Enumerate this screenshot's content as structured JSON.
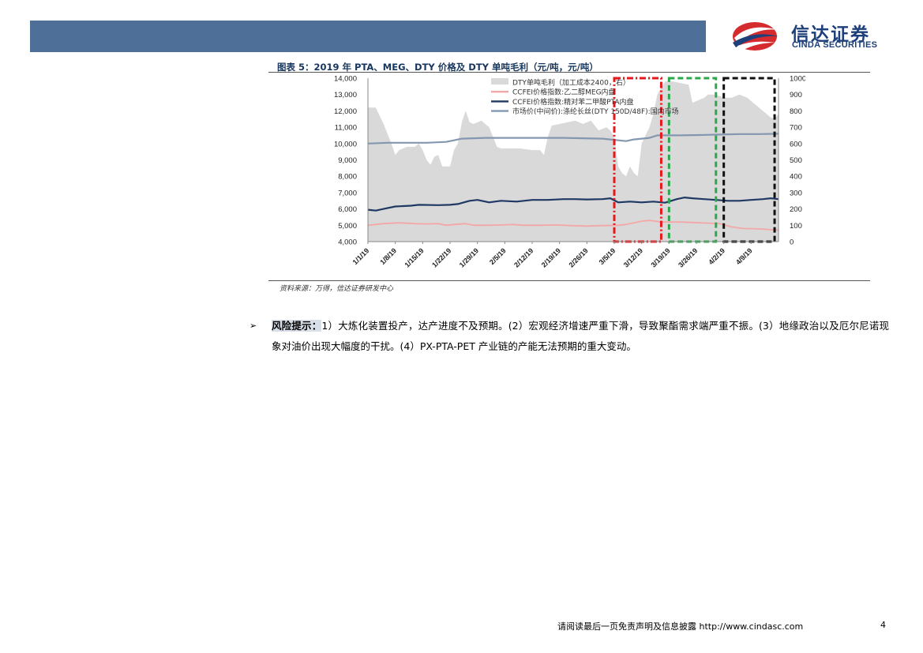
{
  "logo": {
    "cn": "信达证券",
    "en": "CINDA SECURITIES"
  },
  "figure_title": "图表 5：2019 年 PTA、MEG、DTY 价格及 DTY 单吨毛利（元/吨，元/吨）",
  "source": "资料来源：万得，信达证券研发中心",
  "risk": {
    "bullet": "➢",
    "label": "风险提示：",
    "text": "1）大炼化装置投产，达产进度不及预期。(2）宏观经济增速严重下滑，导致聚酯需求端严重不振。(3）地缘政治以及厄尔尼诺现象对油价出现大幅度的干扰。(4）PX-PTA-PET 产业链的产能无法预期的重大变动。"
  },
  "footer": {
    "text": "请阅读最后一页免责声明及信息披露 http://www.cindasc.com",
    "page": "4"
  },
  "colors": {
    "header": "#4e6f97",
    "area": "#d9d9d9",
    "meg": "#f4a7a7",
    "pta": "#1f3864",
    "dty": "#8497b0",
    "box_red": "#e8171c",
    "box_green": "#2aa84a",
    "box_black": "#111111"
  },
  "chart_data": {
    "type": "line",
    "x_range": [
      "1/1/19",
      "4/15/19"
    ],
    "x_tick_labels": [
      "1/1/19",
      "1/8/19",
      "1/15/19",
      "1/22/19",
      "1/29/19",
      "2/5/19",
      "2/12/19",
      "2/19/19",
      "2/26/19",
      "3/5/19",
      "3/12/19",
      "3/19/19",
      "3/26/19",
      "4/2/19",
      "4/9/19"
    ],
    "y_left": {
      "range": [
        4000,
        14000
      ],
      "ticks": [
        "4,000",
        "5,000",
        "6,000",
        "7,000",
        "8,000",
        "9,000",
        "10,000",
        "11,000",
        "12,000",
        "13,000",
        "14,000"
      ]
    },
    "y_right": {
      "range": [
        0,
        1000
      ],
      "ticks": [
        "0",
        "100",
        "200",
        "300",
        "400",
        "500",
        "600",
        "700",
        "800",
        "900",
        "1000"
      ]
    },
    "legend": [
      "DTY单吨毛利（加工成本2400，右）",
      "CCFEI价格指数:乙二醇MEG内盘",
      "CCFEI价格指数:精对苯二甲酸PTA内盘",
      "市场价(中间价):涤纶长丝(DTY 150D/48F):国内市场"
    ],
    "series": [
      {
        "name": "DTY单吨毛利（加工成本2400，右）",
        "axis": "right",
        "kind": "area",
        "points": [
          [
            0,
            820
          ],
          [
            2,
            820
          ],
          [
            4,
            720
          ],
          [
            6,
            600
          ],
          [
            7,
            530
          ],
          [
            8,
            560
          ],
          [
            10,
            580
          ],
          [
            12,
            580
          ],
          [
            13,
            600
          ],
          [
            14,
            560
          ],
          [
            15,
            500
          ],
          [
            16,
            470
          ],
          [
            17,
            520
          ],
          [
            18,
            530
          ],
          [
            19,
            460
          ],
          [
            21,
            460
          ],
          [
            22,
            560
          ],
          [
            23,
            600
          ],
          [
            24,
            730
          ],
          [
            25,
            800
          ],
          [
            26,
            730
          ],
          [
            27,
            720
          ],
          [
            29,
            740
          ],
          [
            30,
            720
          ],
          [
            31,
            700
          ],
          [
            32,
            640
          ],
          [
            33,
            580
          ],
          [
            34,
            570
          ],
          [
            35,
            570
          ],
          [
            39,
            570
          ],
          [
            42,
            560
          ],
          [
            44,
            560
          ],
          [
            45,
            530
          ],
          [
            46,
            640
          ],
          [
            47,
            710
          ],
          [
            49,
            720
          ],
          [
            51,
            730
          ],
          [
            53,
            740
          ],
          [
            55,
            720
          ],
          [
            57,
            740
          ],
          [
            59,
            680
          ],
          [
            61,
            700
          ],
          [
            62,
            680
          ],
          [
            63,
            640
          ],
          [
            64,
            460
          ],
          [
            65,
            420
          ],
          [
            66,
            400
          ],
          [
            67,
            460
          ],
          [
            68,
            420
          ],
          [
            69,
            400
          ],
          [
            70,
            600
          ],
          [
            71,
            650
          ],
          [
            72,
            700
          ],
          [
            73,
            780
          ],
          [
            74,
            900
          ],
          [
            76,
            980
          ],
          [
            78,
            980
          ],
          [
            80,
            970
          ],
          [
            82,
            960
          ],
          [
            83,
            850
          ],
          [
            85,
            870
          ],
          [
            86,
            880
          ],
          [
            87,
            900
          ],
          [
            89,
            900
          ],
          [
            91,
            880
          ],
          [
            93,
            880
          ],
          [
            95,
            900
          ],
          [
            97,
            880
          ],
          [
            99,
            840
          ],
          [
            101,
            800
          ],
          [
            102,
            780
          ],
          [
            103,
            760
          ],
          [
            104,
            750
          ],
          [
            105,
            780
          ]
        ]
      },
      {
        "name": "CCFEI价格指数:乙二醇MEG内盘",
        "axis": "left",
        "kind": "line",
        "points": [
          [
            0,
            5000
          ],
          [
            4,
            5100
          ],
          [
            8,
            5150
          ],
          [
            12,
            5100
          ],
          [
            15,
            5080
          ],
          [
            18,
            5100
          ],
          [
            20,
            5000
          ],
          [
            22,
            5050
          ],
          [
            25,
            5100
          ],
          [
            27,
            5000
          ],
          [
            31,
            5000
          ],
          [
            34,
            5020
          ],
          [
            37,
            5050
          ],
          [
            40,
            5000
          ],
          [
            44,
            5000
          ],
          [
            48,
            5020
          ],
          [
            52,
            4980
          ],
          [
            56,
            4950
          ],
          [
            60,
            4980
          ],
          [
            64,
            5000
          ],
          [
            66,
            5050
          ],
          [
            68,
            5150
          ],
          [
            70,
            5250
          ],
          [
            72,
            5300
          ],
          [
            75,
            5200
          ],
          [
            80,
            5200
          ],
          [
            85,
            5150
          ],
          [
            90,
            5100
          ],
          [
            93,
            4900
          ],
          [
            96,
            4800
          ],
          [
            100,
            4780
          ],
          [
            105,
            4700
          ]
        ]
      },
      {
        "name": "CCFEI价格指数:精对苯二甲酸PTA内盘",
        "axis": "left",
        "kind": "line",
        "points": [
          [
            0,
            5950
          ],
          [
            2,
            5900
          ],
          [
            4,
            6000
          ],
          [
            7,
            6150
          ],
          [
            11,
            6200
          ],
          [
            13,
            6250
          ],
          [
            18,
            6230
          ],
          [
            21,
            6250
          ],
          [
            23,
            6300
          ],
          [
            26,
            6500
          ],
          [
            28,
            6550
          ],
          [
            31,
            6400
          ],
          [
            34,
            6500
          ],
          [
            38,
            6450
          ],
          [
            42,
            6550
          ],
          [
            46,
            6550
          ],
          [
            50,
            6600
          ],
          [
            53,
            6600
          ],
          [
            56,
            6580
          ],
          [
            60,
            6600
          ],
          [
            62,
            6650
          ],
          [
            64,
            6400
          ],
          [
            67,
            6450
          ],
          [
            70,
            6400
          ],
          [
            73,
            6450
          ],
          [
            76,
            6380
          ],
          [
            79,
            6600
          ],
          [
            81,
            6700
          ],
          [
            83,
            6650
          ],
          [
            86,
            6600
          ],
          [
            89,
            6550
          ],
          [
            92,
            6500
          ],
          [
            95,
            6500
          ],
          [
            98,
            6550
          ],
          [
            101,
            6600
          ],
          [
            103,
            6650
          ],
          [
            105,
            6600
          ]
        ]
      },
      {
        "name": "市场价(中间价):涤纶长丝(DTY 150D/48F):国内市场",
        "axis": "left",
        "kind": "line",
        "points": [
          [
            0,
            10000
          ],
          [
            5,
            10050
          ],
          [
            10,
            10050
          ],
          [
            15,
            10050
          ],
          [
            20,
            10100
          ],
          [
            22,
            10200
          ],
          [
            24,
            10300
          ],
          [
            30,
            10350
          ],
          [
            40,
            10350
          ],
          [
            50,
            10350
          ],
          [
            60,
            10300
          ],
          [
            64,
            10200
          ],
          [
            66,
            10150
          ],
          [
            68,
            10250
          ],
          [
            70,
            10300
          ],
          [
            72,
            10350
          ],
          [
            74,
            10500
          ],
          [
            80,
            10500
          ],
          [
            85,
            10520
          ],
          [
            90,
            10550
          ],
          [
            95,
            10580
          ],
          [
            100,
            10580
          ],
          [
            105,
            10600
          ]
        ]
      }
    ],
    "annotations": [
      {
        "style": "red-dashdot",
        "x_from": "3/5/19",
        "x_to": "3/17/19"
      },
      {
        "style": "green-dashed",
        "x_from": "3/19/19",
        "x_to": "3/31/19"
      },
      {
        "style": "black-dashed",
        "x_from": "4/2/19",
        "x_to": "4/15/19"
      }
    ]
  }
}
